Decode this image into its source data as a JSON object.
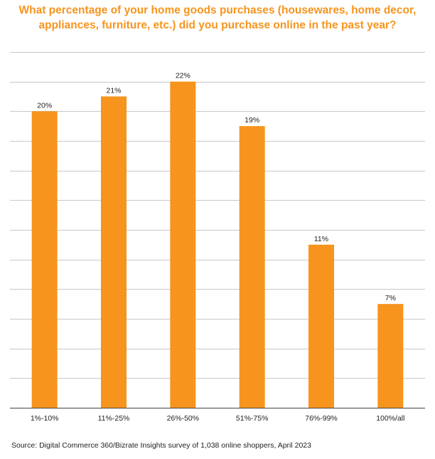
{
  "chart_data": {
    "type": "bar",
    "title": "What percentage of your home goods purchases (housewares, home decor,\nappliances, furniture, etc.) did you purchase online in the past year?",
    "categories": [
      "1%-10%",
      "11%-25%",
      "26%-50%",
      "51%-75%",
      "76%-99%",
      "100%/all"
    ],
    "values": [
      20,
      21,
      22,
      19,
      11,
      7
    ],
    "value_labels": [
      "20%",
      "21%",
      "22%",
      "19%",
      "11%",
      "7%"
    ],
    "ylim": [
      0,
      24
    ],
    "grid": true,
    "colors": {
      "bar": "#f7941d",
      "grid": "#c8c8c8",
      "axis": "#444444",
      "title": "#f7941d"
    }
  },
  "source": "Source:  Digital Commerce 360/Bizrate Insights survey of 1,038 online shoppers, April 2023"
}
